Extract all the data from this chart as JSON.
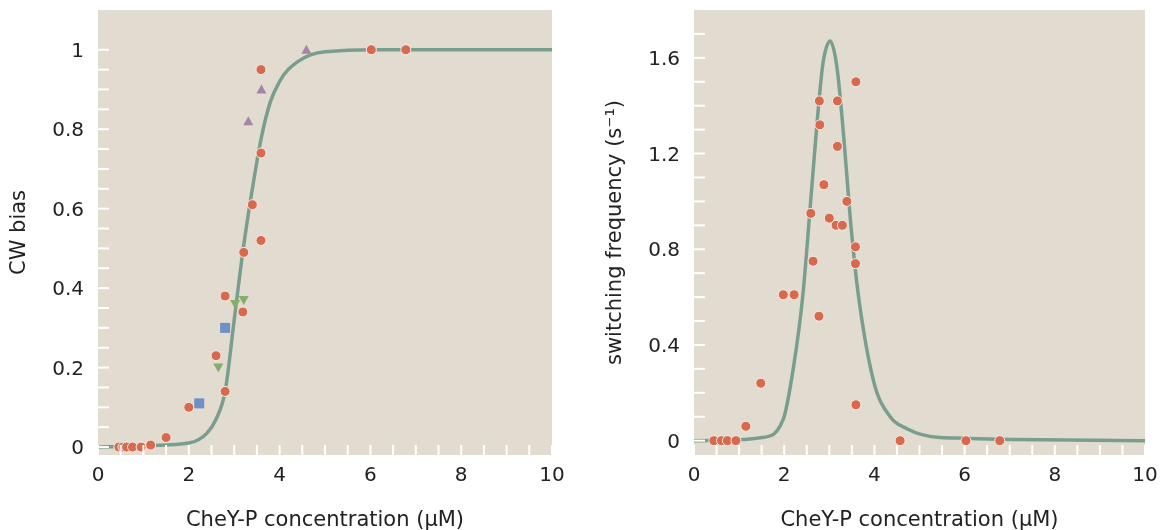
{
  "chart_data": [
    {
      "type": "scatter",
      "xlabel": "CheY-P concentration (μM)",
      "ylabel": "CW bias",
      "xlim": [
        0,
        10
      ],
      "ylim": [
        -0.02,
        1.1
      ],
      "xticks": [
        0,
        {
          "value": 0.5,
          "label": null
        },
        {
          "value": 1,
          "label": null
        },
        {
          "value": 1.5,
          "label": null
        },
        2,
        {
          "value": 2.5,
          "label": null
        },
        {
          "value": 3,
          "label": null
        },
        {
          "value": 3.5,
          "label": null
        },
        4,
        {
          "value": 4.5,
          "label": null
        },
        {
          "value": 5,
          "label": null
        },
        {
          "value": 5.5,
          "label": null
        },
        6,
        {
          "value": 6.5,
          "label": null
        },
        {
          "value": 7,
          "label": null
        },
        {
          "value": 7.5,
          "label": null
        },
        8,
        {
          "value": 8.5,
          "label": null
        },
        {
          "value": 9,
          "label": null
        },
        {
          "value": 9.5,
          "label": null
        },
        10
      ],
      "yticks": [
        0,
        {
          "value": 0.05,
          "label": null
        },
        {
          "value": 0.1,
          "label": null
        },
        {
          "value": 0.15,
          "label": null
        },
        0.2,
        {
          "value": 0.25,
          "label": null
        },
        {
          "value": 0.3,
          "label": null
        },
        {
          "value": 0.35,
          "label": null
        },
        0.4,
        {
          "value": 0.45,
          "label": null
        },
        {
          "value": 0.5,
          "label": null
        },
        {
          "value": 0.55,
          "label": null
        },
        0.6,
        {
          "value": 0.65,
          "label": null
        },
        {
          "value": 0.7,
          "label": null
        },
        {
          "value": 0.75,
          "label": null
        },
        0.8,
        {
          "value": 0.85,
          "label": null
        },
        {
          "value": 0.9,
          "label": null
        },
        {
          "value": 0.95,
          "label": null
        },
        1
      ],
      "series": [
        {
          "type": "line",
          "color": "#7a9e8e",
          "x": [
            0,
            1.5,
            2,
            2.4,
            2.6,
            2.8,
            3,
            3.2,
            3.4,
            3.6,
            3.8,
            4,
            4.4,
            5,
            6,
            10
          ],
          "values": [
            0,
            0.005,
            0.01,
            0.035,
            0.07,
            0.14,
            0.32,
            0.5,
            0.65,
            0.78,
            0.87,
            0.92,
            0.97,
            0.995,
            1,
            1
          ]
        },
        {
          "marker": "circle",
          "color": "#d9694e",
          "x": [
            0.46,
            0.55,
            0.63,
            0.76,
            0.95,
            1.16,
            1.5,
            2,
            2.6,
            2.8,
            2.8,
            3.19,
            3.21,
            3.4,
            3.59,
            3.59,
            3.59,
            6.02,
            6.78
          ],
          "values": [
            0,
            0,
            0,
            0,
            0,
            0.005,
            0.024,
            0.1,
            0.23,
            0.14,
            0.38,
            0.34,
            0.49,
            0.61,
            0.52,
            0.74,
            0.95,
            1,
            1
          ]
        },
        {
          "marker": "square",
          "color": "#6f8fc8",
          "x": [
            2.23,
            2.8
          ],
          "values": [
            0.11,
            0.3
          ]
        },
        {
          "marker": "triangle-down",
          "color": "#86ad6b",
          "x": [
            2.65,
            3.02,
            3.21
          ],
          "values": [
            0.2,
            0.36,
            0.37
          ]
        },
        {
          "marker": "triangle",
          "color": "#a683a8",
          "x": [
            3.31,
            3.6,
            4.59
          ],
          "values": [
            0.82,
            0.9,
            1
          ]
        }
      ]
    },
    {
      "type": "scatter",
      "xlabel": "CheY-P concentration (μM)",
      "ylabel": "switching frequency (s⁻¹)",
      "xlim": [
        0,
        10
      ],
      "ylim": [
        -0.06,
        1.8
      ],
      "xticks": [
        0,
        {
          "value": 0.5,
          "label": null
        },
        {
          "value": 1,
          "label": null
        },
        {
          "value": 1.5,
          "label": null
        },
        2,
        {
          "value": 2.5,
          "label": null
        },
        {
          "value": 3,
          "label": null
        },
        {
          "value": 3.5,
          "label": null
        },
        4,
        {
          "value": 4.5,
          "label": null
        },
        {
          "value": 5,
          "label": null
        },
        {
          "value": 5.5,
          "label": null
        },
        6,
        {
          "value": 6.5,
          "label": null
        },
        {
          "value": 7,
          "label": null
        },
        {
          "value": 7.5,
          "label": null
        },
        8,
        {
          "value": 8.5,
          "label": null
        },
        {
          "value": 9,
          "label": null
        },
        {
          "value": 9.5,
          "label": null
        },
        10
      ],
      "yticks": [
        0,
        {
          "value": 0.1,
          "label": null
        },
        {
          "value": 0.2,
          "label": null
        },
        {
          "value": 0.3,
          "label": null
        },
        0.4,
        {
          "value": 0.5,
          "label": null
        },
        {
          "value": 0.6,
          "label": null
        },
        {
          "value": 0.7,
          "label": null
        },
        0.8,
        {
          "value": 0.9,
          "label": null
        },
        {
          "value": 1,
          "label": null
        },
        {
          "value": 1.1,
          "label": null
        },
        1.2,
        {
          "value": 1.3,
          "label": null
        },
        {
          "value": 1.4,
          "label": null
        },
        {
          "value": 1.5,
          "label": null
        },
        1.6,
        {
          "value": 1.7,
          "label": null
        }
      ],
      "series": [
        {
          "type": "line",
          "color": "#7a9e8e",
          "x": [
            0,
            1.12,
            1.69,
            1.98,
            2.2,
            2.42,
            2.57,
            2.72,
            2.87,
            3.02,
            3.17,
            3.32,
            3.46,
            3.61,
            3.76,
            3.98,
            4.35,
            4.72,
            5.46,
            6,
            7,
            10
          ],
          "values": [
            0,
            0.005,
            0.02,
            0.09,
            0.3,
            0.62,
            0.96,
            1.31,
            1.59,
            1.67,
            1.56,
            1.27,
            0.94,
            0.66,
            0.46,
            0.25,
            0.1,
            0.05,
            0.013,
            0.01,
            0.005,
            0
          ]
        },
        {
          "marker": "circle",
          "color": "#d9694e",
          "x": [
            0.44,
            0.61,
            0.74,
            0.93,
            1.15,
            1.48,
            1.98,
            2.22,
            2.59,
            2.64,
            2.77,
            2.79,
            2.78,
            2.88,
            3,
            3.15,
            3.29,
            3.18,
            3.18,
            3.39,
            3.58,
            3.58,
            3.59,
            3.59,
            4.57,
            6.03,
            6.78
          ],
          "values": [
            0,
            0,
            0,
            0,
            0.06,
            0.24,
            0.61,
            0.61,
            0.95,
            0.75,
            0.52,
            1.32,
            1.42,
            1.07,
            0.93,
            0.9,
            0.9,
            1.42,
            1.23,
            1,
            0.81,
            0.74,
            1.5,
            0.15,
            0,
            0,
            0
          ]
        }
      ]
    }
  ]
}
